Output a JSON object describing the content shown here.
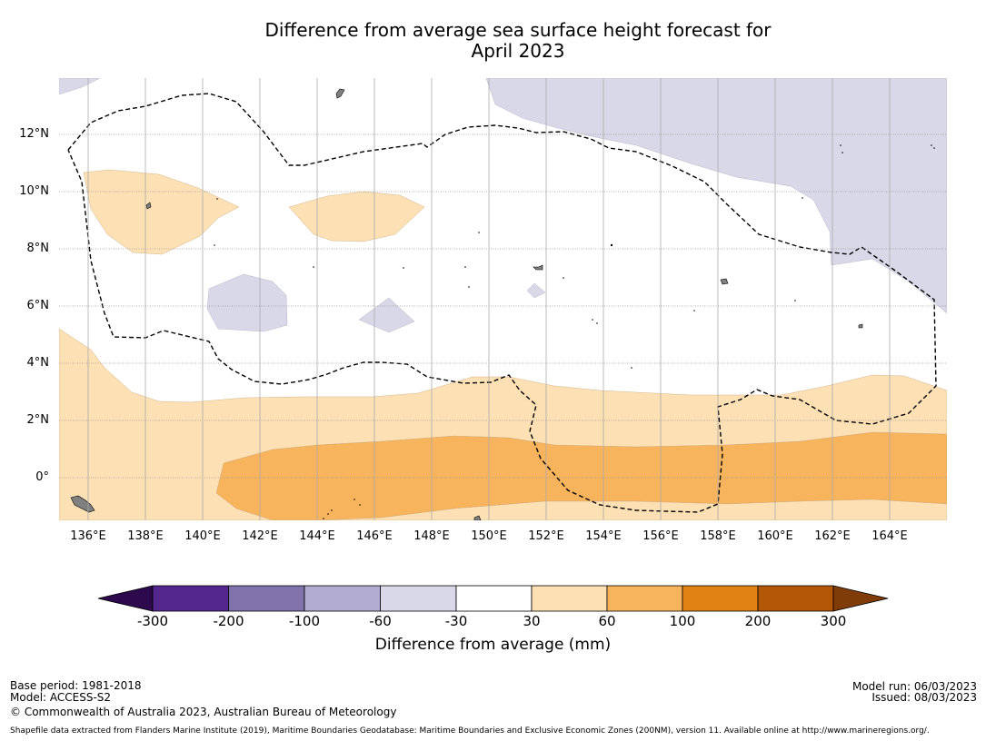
{
  "title": {
    "line1": "Difference from average sea surface height forecast for",
    "line2": "April 2023"
  },
  "map": {
    "lat_labels": [
      {
        "text": "12°N",
        "lat": 12
      },
      {
        "text": "10°N",
        "lat": 10
      },
      {
        "text": "8°N",
        "lat": 8
      },
      {
        "text": "6°N",
        "lat": 6
      },
      {
        "text": "4°N",
        "lat": 4
      },
      {
        "text": "2°N",
        "lat": 2
      },
      {
        "text": "0°",
        "lat": 0
      }
    ],
    "lon_labels": [
      {
        "text": "136°E",
        "lon": 136
      },
      {
        "text": "138°E",
        "lon": 138
      },
      {
        "text": "140°E",
        "lon": 140
      },
      {
        "text": "142°E",
        "lon": 142
      },
      {
        "text": "144°E",
        "lon": 144
      },
      {
        "text": "146°E",
        "lon": 146
      },
      {
        "text": "148°E",
        "lon": 148
      },
      {
        "text": "150°E",
        "lon": 150
      },
      {
        "text": "152°E",
        "lon": 152
      },
      {
        "text": "154°E",
        "lon": 154
      },
      {
        "text": "156°E",
        "lon": 156
      },
      {
        "text": "158°E",
        "lon": 158
      },
      {
        "text": "160°E",
        "lon": 160
      },
      {
        "text": "162°E",
        "lon": 162
      },
      {
        "text": "164°E",
        "lon": 164
      }
    ],
    "colors": {
      "minus30_to_minus60": "#d8d8e8",
      "plus30_to_60": "#fde0b4",
      "plus60_to_100": "#f8b45c",
      "land": "#808080"
    }
  },
  "colorbar": {
    "title": "Difference from average (mm)",
    "ticks": [
      "-300",
      "-200",
      "-100",
      "-60",
      "-30",
      "30",
      "60",
      "100",
      "200",
      "300"
    ],
    "colors": [
      "#2d0a4e",
      "#54278f",
      "#8073ac",
      "#b2abd2",
      "#d8d8e8",
      "#ffffff",
      "#fde0b4",
      "#f8b45c",
      "#e08214",
      "#b35806",
      "#7f3b08"
    ]
  },
  "footer": {
    "base_period": "Base period: 1981-2018",
    "model": "Model: ACCESS-S2",
    "copyright": "© Commonwealth of Australia 2023, Australian Bureau of Meteorology",
    "model_run": "Model run: 06/03/2023",
    "issued": "Issued: 08/03/2023",
    "shapefile": "Shapefile data extracted from Flanders Marine Institute (2019), Maritime Boundaries Geodatabase: Maritime Boundaries and Exclusive Economic Zones (200NM), version 11. Available online at http://www.marineregions.org/."
  }
}
